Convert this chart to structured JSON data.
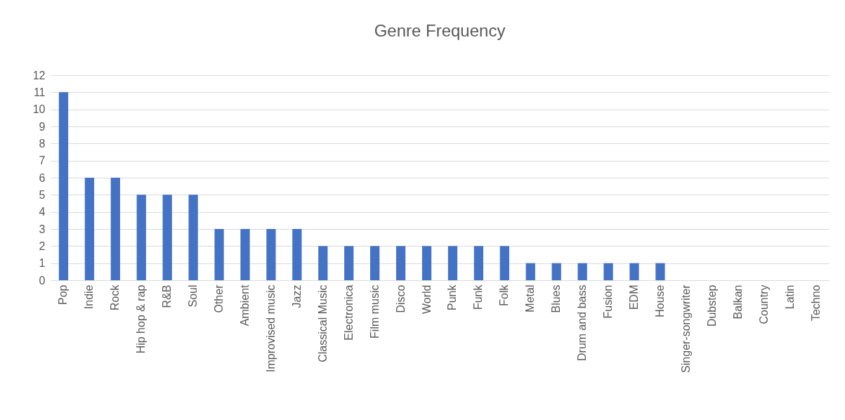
{
  "chart_data": {
    "type": "bar",
    "title": "Genre Frequency",
    "categories": [
      "Pop",
      "Indie",
      "Rock",
      "Hip hop & rap",
      "R&B",
      "Soul",
      "Other",
      "Ambient",
      "Improvised music",
      "Jazz",
      "Classical Music",
      "Electronica",
      "Film music",
      "Disco",
      "World",
      "Punk",
      "Funk",
      "Folk",
      "Metal",
      "Blues",
      "Drum and bass",
      "Fusion",
      "EDM",
      "House",
      "Singer-songwriter",
      "Dubstep",
      "Balkan",
      "Country",
      "Latin",
      "Techno"
    ],
    "values": [
      11,
      6,
      6,
      5,
      5,
      5,
      3,
      3,
      3,
      3,
      2,
      2,
      2,
      2,
      2,
      2,
      2,
      2,
      1,
      1,
      1,
      1,
      1,
      1,
      0,
      0,
      0,
      0,
      0,
      0
    ],
    "color": "#4472c4",
    "ylim": [
      0,
      12
    ],
    "yticks": [
      0,
      1,
      2,
      3,
      4,
      5,
      6,
      7,
      8,
      9,
      10,
      11,
      12
    ],
    "grid": "y"
  }
}
